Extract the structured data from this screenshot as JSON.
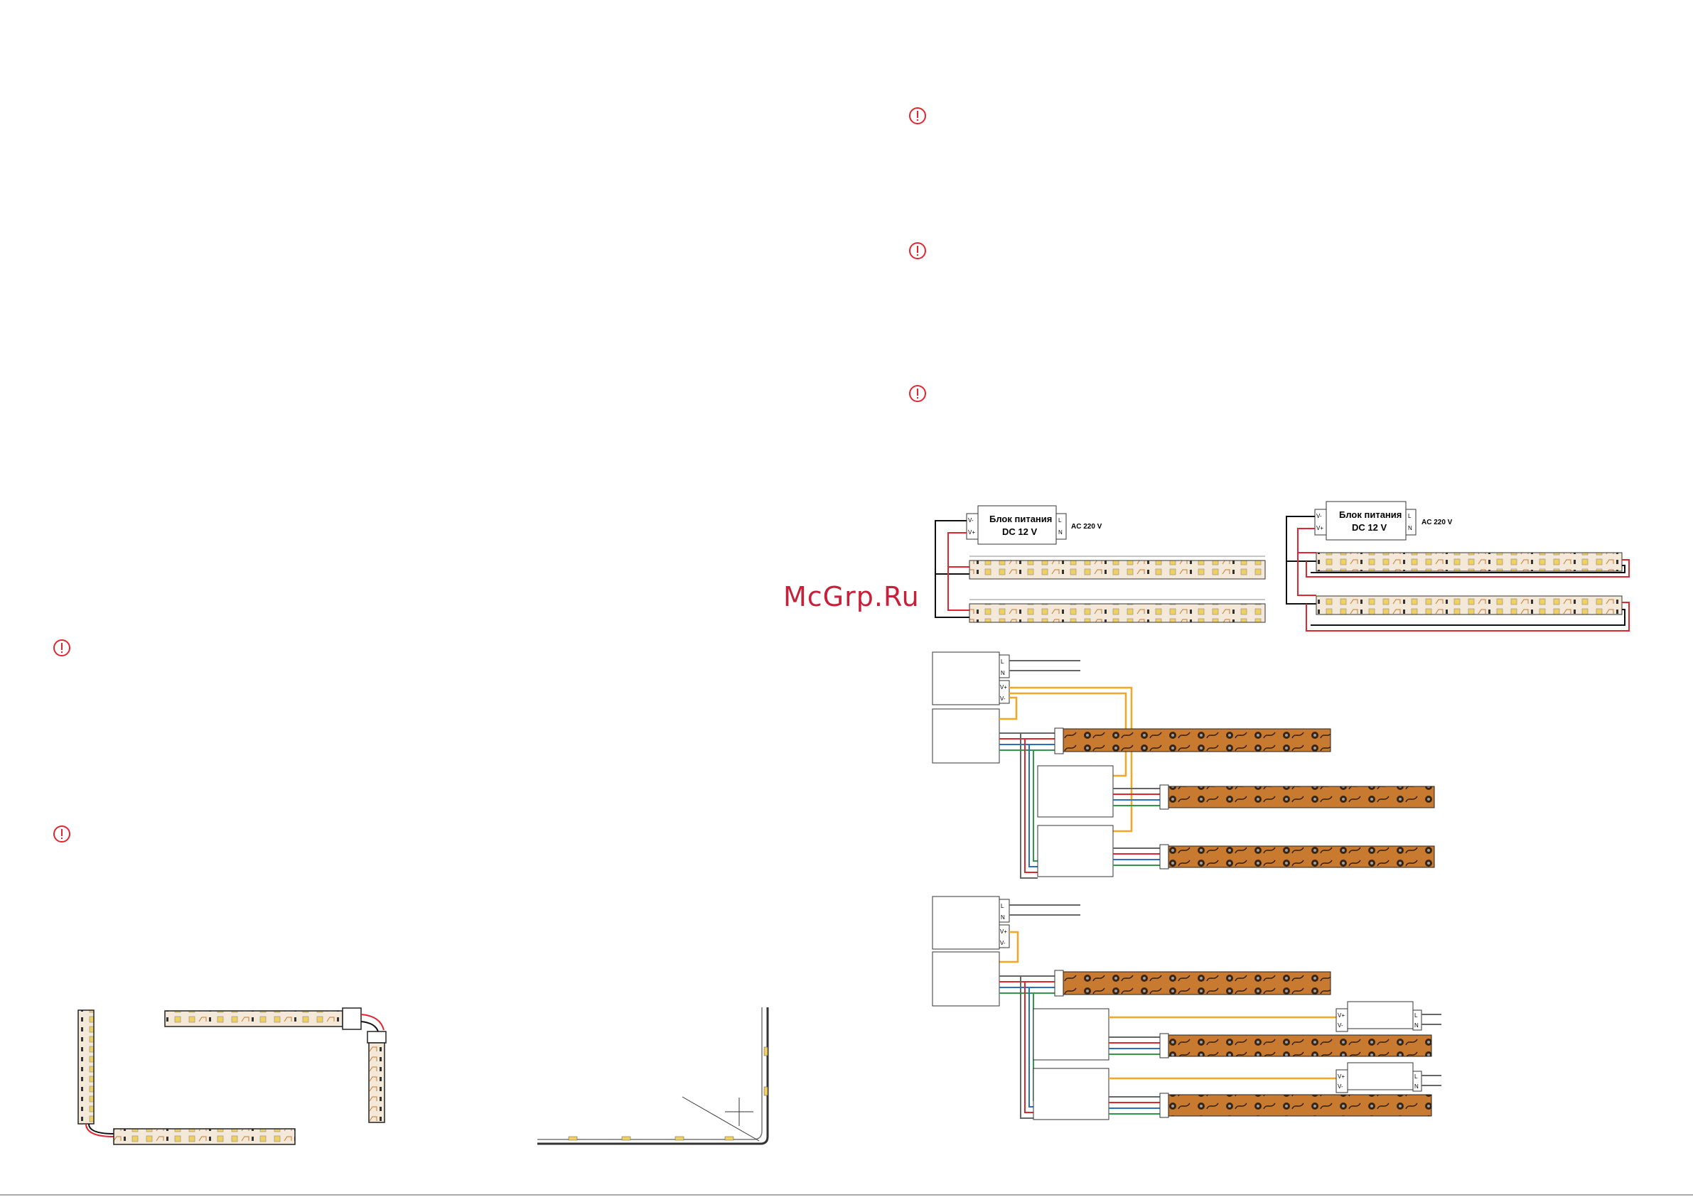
{
  "watermark": "McGrp.Ru",
  "power_supply": {
    "title_line1": "Блок питания",
    "title_line2": "DC 12 V",
    "ac_label": "AC 220 V",
    "terminal_l": "L",
    "terminal_n": "N",
    "terminal_vminus": "V-",
    "terminal_vplus": "V+"
  },
  "colors": {
    "warning_red": "#e0262f",
    "wire_red": "#e0262f",
    "wire_black": "#111111",
    "wire_orange": "#f5a623",
    "wire_green": "#2e9a48",
    "wire_blue": "#2b6fc2",
    "strip_orange": "#c87a30",
    "strip_dark": "#2a1a0c",
    "watermark": "#c8203a"
  },
  "icons": [
    "warning-icon"
  ]
}
